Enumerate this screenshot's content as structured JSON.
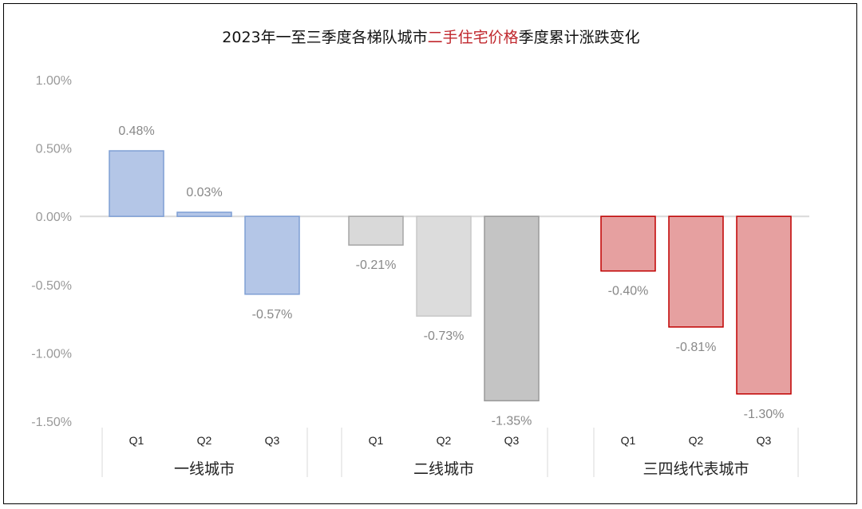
{
  "title": {
    "prefix": "2023年一至三季度各梯队城市",
    "highlight": "二手住宅价格",
    "suffix": "季度累计涨跌变化",
    "highlight_color": "#c0272d"
  },
  "chart_data": {
    "type": "bar",
    "ylim": [
      -1.5,
      1.0
    ],
    "yticks": [
      1.0,
      0.5,
      0.0,
      -0.5,
      -1.0,
      -1.5
    ],
    "ytick_labels": [
      "1.00%",
      "0.50%",
      "0.00%",
      "-0.50%",
      "-1.00%",
      "-1.50%"
    ],
    "groups": [
      {
        "name": "一线城市",
        "quarters": [
          "Q1",
          "Q2",
          "Q3"
        ],
        "values": [
          0.48,
          0.03,
          -0.57
        ],
        "labels": [
          "0.48%",
          "0.03%",
          "-0.57%"
        ],
        "fills": [
          "#b4c6e7",
          "#b4c6e7",
          "#b4c6e7"
        ],
        "strokes": [
          "#7f9fd4",
          "#7f9fd4",
          "#7f9fd4"
        ]
      },
      {
        "name": "二线城市",
        "quarters": [
          "Q1",
          "Q2",
          "Q3"
        ],
        "values": [
          -0.21,
          -0.73,
          -1.35
        ],
        "labels": [
          "-0.21%",
          "-0.73%",
          "-1.35%"
        ],
        "fills": [
          "#d9d9d9",
          "#dcdcdc",
          "#c4c4c4"
        ],
        "strokes": [
          "#a6a6a6",
          "#c8c8c8",
          "#9a9a9a"
        ]
      },
      {
        "name": "三四线代表城市",
        "quarters": [
          "Q1",
          "Q2",
          "Q3"
        ],
        "values": [
          -0.4,
          -0.81,
          -1.3
        ],
        "labels": [
          "-0.40%",
          "-0.81%",
          "-1.30%"
        ],
        "fills": [
          "#e6a0a0",
          "#e6a0a0",
          "#e6a0a0"
        ],
        "strokes": [
          "#c00000",
          "#c00000",
          "#c00000"
        ]
      }
    ]
  }
}
